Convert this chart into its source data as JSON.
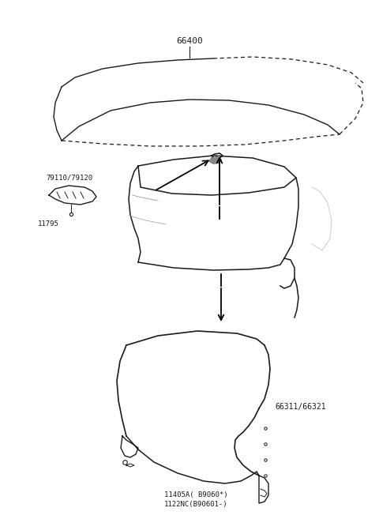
{
  "bg_color": "#ffffff",
  "line_color": "#1a1a1a",
  "labels": {
    "hood": "66400",
    "hinge": "79110/79120",
    "hinge_bolt": "11795",
    "fender": "66311/66321",
    "fender_note1": "11405A( B9060*)",
    "fender_note2": "1122NC(B90601-)"
  },
  "arrow_color": "#000000",
  "dashed_color": "#555555"
}
